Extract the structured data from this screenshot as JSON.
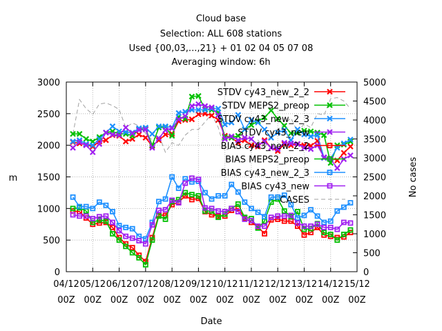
{
  "chart_data": {
    "type": "line",
    "title_lines": [
      "Cloud base",
      "Selection: ALL    608 stations",
      "Used {00,03,...,21} + 01 02 04 05 07 08",
      "Averaging window:  6h"
    ],
    "xlabel": "Date",
    "ylabel": "m",
    "y2label": "No cases",
    "ylim": [
      0,
      3000
    ],
    "y2lim": [
      0,
      5000
    ],
    "yticks": [
      "0",
      "500",
      "1000",
      "1500",
      "2000",
      "2500",
      "3000"
    ],
    "y2ticks": [
      "0",
      "500",
      "1000",
      "1500",
      "2000",
      "2500",
      "3000",
      "3500",
      "4000",
      "4500",
      "5000"
    ],
    "xticks": [
      {
        "top": "04/12",
        "bottom": "00Z"
      },
      {
        "top": "05/12",
        "bottom": "00Z"
      },
      {
        "top": "06/12",
        "bottom": "00Z"
      },
      {
        "top": "07/12",
        "bottom": "00Z"
      },
      {
        "top": "08/12",
        "bottom": "00Z"
      },
      {
        "top": "09/12",
        "bottom": "00Z"
      },
      {
        "top": "10/12",
        "bottom": "00Z"
      },
      {
        "top": "11/12",
        "bottom": "00Z"
      },
      {
        "top": "12/12",
        "bottom": "00Z"
      },
      {
        "top": "13/12",
        "bottom": "00Z"
      },
      {
        "top": "14/12",
        "bottom": "00Z"
      },
      {
        "top": "15/12",
        "bottom": "00Z"
      }
    ],
    "x": [
      0.25,
      0.5,
      0.75,
      1.0,
      1.25,
      1.5,
      1.75,
      2.0,
      2.25,
      2.5,
      2.75,
      3.0,
      3.25,
      3.5,
      3.75,
      4.0,
      4.25,
      4.5,
      4.75,
      5.0,
      5.25,
      5.5,
      5.75,
      6.0,
      6.25,
      6.5,
      6.75,
      7.0,
      7.25,
      7.5,
      7.75,
      8.0,
      8.25,
      8.5,
      8.75,
      9.0,
      9.25,
      9.5,
      9.75,
      10.0,
      10.25,
      10.5,
      10.75
    ],
    "series": [
      {
        "name": "STDV cy43_new_2_2",
        "axis": "y1",
        "color": "#ff0000",
        "marker": "x",
        "values": [
          2050,
          2030,
          2010,
          1980,
          2060,
          2080,
          2160,
          2150,
          2060,
          2100,
          2170,
          2120,
          1990,
          2080,
          2170,
          2180,
          2380,
          2400,
          2410,
          2490,
          2500,
          2470,
          2400,
          2150,
          2120,
          2040,
          2080,
          2000,
          1980,
          2080,
          1960,
          1910,
          2020,
          2000,
          2020,
          2000,
          1990,
          2070,
          1800,
          1800,
          1760,
          1880,
          1980
        ]
      },
      {
        "name": "STDV MEPS2_preop",
        "axis": "y1",
        "color": "#00c000",
        "marker": "x",
        "values": [
          2180,
          2180,
          2100,
          2060,
          2130,
          2200,
          2220,
          2180,
          2180,
          2150,
          2250,
          2260,
          2000,
          2280,
          2290,
          2150,
          2450,
          2420,
          2770,
          2780,
          2570,
          2560,
          2520,
          2130,
          2120,
          2150,
          2250,
          2320,
          2380,
          2440,
          2550,
          2420,
          2310,
          2190,
          2200,
          2230,
          2220,
          2200,
          2160,
          1720,
          2000,
          2010,
          2060
        ]
      },
      {
        "name": "STDV cy43_new_2_3",
        "axis": "y1",
        "color": "#1e90ff",
        "marker": "x",
        "values": [
          2060,
          2080,
          2020,
          2000,
          2100,
          2200,
          2300,
          2220,
          2210,
          2200,
          2270,
          2280,
          2180,
          2300,
          2300,
          2280,
          2510,
          2530,
          2560,
          2560,
          2560,
          2580,
          2580,
          2330,
          2360,
          2480,
          2250,
          2400,
          2360,
          2250,
          2120,
          2200,
          2240,
          2080,
          2250,
          2170,
          2140,
          2160,
          1800,
          1790,
          1960,
          2030,
          2090
        ]
      },
      {
        "name": "STDV cy43_new",
        "axis": "y1",
        "color": "#a020f0",
        "marker": "x",
        "values": [
          1960,
          2050,
          2000,
          1890,
          2020,
          2200,
          2170,
          2160,
          2280,
          2190,
          2240,
          2250,
          1960,
          2110,
          2240,
          2270,
          2410,
          2460,
          2620,
          2650,
          2620,
          2600,
          2480,
          2100,
          2140,
          2080,
          2120,
          2100,
          2000,
          2060,
          1960,
          1940,
          2040,
          2030,
          2020,
          1960,
          1940,
          2000,
          1810,
          1780,
          1640,
          1780,
          1840
        ]
      },
      {
        "name": "BIAS cy43_new_2_2",
        "axis": "y1",
        "color": "#ff0000",
        "marker": "s",
        "values": [
          960,
          950,
          850,
          750,
          770,
          780,
          700,
          540,
          440,
          380,
          260,
          160,
          540,
          900,
          890,
          1060,
          1100,
          1200,
          1140,
          1160,
          950,
          900,
          880,
          880,
          970,
          1000,
          850,
          780,
          710,
          600,
          820,
          830,
          800,
          800,
          720,
          580,
          620,
          700,
          580,
          560,
          540,
          550,
          620
        ]
      },
      {
        "name": "BIAS MEPS2_preop",
        "axis": "y1",
        "color": "#00c000",
        "marker": "s",
        "values": [
          1000,
          1010,
          960,
          780,
          820,
          800,
          600,
          500,
          400,
          300,
          220,
          110,
          500,
          880,
          830,
          1110,
          1140,
          1250,
          1220,
          1200,
          960,
          960,
          860,
          910,
          1000,
          1070,
          860,
          840,
          690,
          800,
          1100,
          1150,
          960,
          870,
          950,
          670,
          680,
          760,
          620,
          590,
          500,
          590,
          660
        ]
      },
      {
        "name": "BIAS cy43_new_2_3",
        "axis": "y1",
        "color": "#1e90ff",
        "marker": "s",
        "values": [
          1180,
          1030,
          1030,
          1000,
          1100,
          1050,
          950,
          730,
          700,
          680,
          560,
          520,
          780,
          1110,
          1150,
          1500,
          1320,
          1470,
          1420,
          1430,
          1250,
          1150,
          1200,
          1200,
          1380,
          1260,
          1100,
          1000,
          940,
          870,
          1180,
          1180,
          1210,
          1060,
          850,
          890,
          980,
          880,
          780,
          800,
          960,
          1020,
          1090
        ]
      },
      {
        "name": "BIAS cy43_new",
        "axis": "y1",
        "color": "#a020f0",
        "marker": "s",
        "values": [
          900,
          880,
          880,
          840,
          870,
          880,
          780,
          650,
          560,
          530,
          490,
          440,
          740,
          970,
          980,
          1130,
          1090,
          1400,
          1480,
          1460,
          1010,
          1000,
          960,
          950,
          1000,
          950,
          830,
          810,
          720,
          720,
          860,
          880,
          880,
          890,
          770,
          720,
          720,
          750,
          700,
          700,
          670,
          780,
          770
        ]
      },
      {
        "name": "CASES",
        "axis": "y2",
        "color": "#a0a0a0",
        "dash": "6,4",
        "values": [
          3630,
          4540,
          4300,
          4150,
          4420,
          4450,
          4380,
          4280,
          3800,
          3920,
          3850,
          3650,
          3470,
          3600,
          3150,
          3400,
          3330,
          3600,
          3750,
          3750,
          3950,
          4150,
          3800,
          3200,
          3270,
          3300,
          3250,
          3380,
          3470,
          3230,
          3660,
          3750,
          3900,
          4050,
          3680,
          3900,
          3800,
          4170,
          4130,
          4560,
          4590,
          4500,
          4300
        ]
      }
    ],
    "legend_placement": "top-right"
  }
}
